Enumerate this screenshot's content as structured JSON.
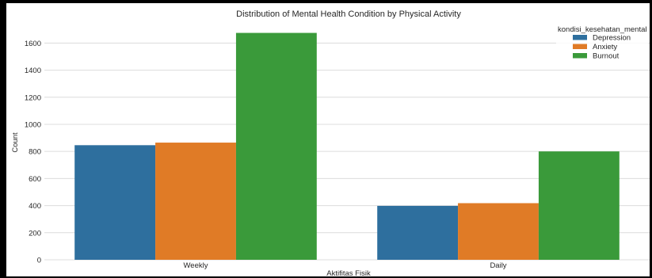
{
  "chart_data": {
    "type": "bar",
    "title": "Distribution of Mental Health Condition by Physical Activity",
    "xlabel": "Aktifitas Fisik",
    "ylabel": "Count",
    "categories": [
      "Weekly",
      "Daily"
    ],
    "series": [
      {
        "name": "Depression",
        "values": [
          846,
          398
        ],
        "color": "#2e6f9e"
      },
      {
        "name": "Anxiety",
        "values": [
          865,
          418
        ],
        "color": "#e07b26"
      },
      {
        "name": "Burnout",
        "values": [
          1675,
          800
        ],
        "color": "#3a9a3a"
      }
    ],
    "ylim": [
      0,
      1760
    ],
    "yticks": [
      0,
      200,
      400,
      600,
      800,
      1000,
      1200,
      1400,
      1600
    ],
    "legend_title": "kondisi_kesehatan_mental",
    "legend_position": "top-right",
    "grid": true
  },
  "colors": {
    "background_outer": "#000000",
    "plot_background": "#ffffff",
    "grid": "#dcdcdc"
  }
}
